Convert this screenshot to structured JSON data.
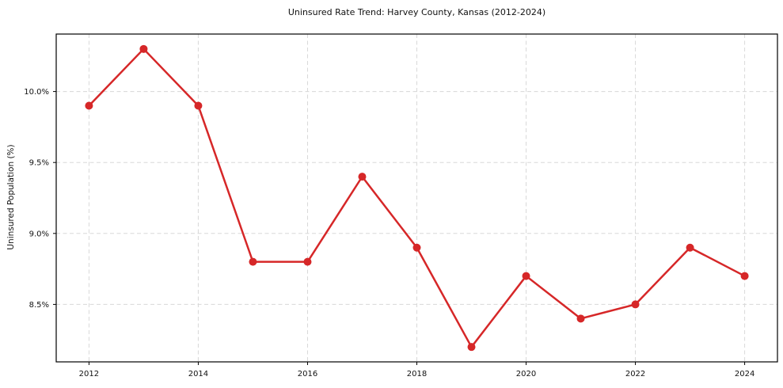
{
  "chart_data": {
    "type": "line",
    "title": "Uninsured Rate Trend: Harvey County, Kansas (2012-2024)",
    "xlabel": "",
    "ylabel": "Uninsured Population (%)",
    "x": [
      2012,
      2013,
      2014,
      2015,
      2016,
      2017,
      2018,
      2019,
      2020,
      2021,
      2022,
      2023,
      2024
    ],
    "series": [
      {
        "name": "Uninsured Rate",
        "values": [
          9.9,
          10.3,
          9.9,
          8.8,
          8.8,
          9.4,
          8.9,
          8.2,
          8.7,
          8.4,
          8.5,
          8.9,
          8.7
        ]
      }
    ],
    "xlim": [
      2011.4,
      2024.6
    ],
    "ylim": [
      8.095,
      10.405
    ],
    "xticks": {
      "values": [
        2012,
        2014,
        2016,
        2018,
        2020,
        2022,
        2024
      ],
      "labels": [
        "2012",
        "2014",
        "2016",
        "2018",
        "2020",
        "2022",
        "2024"
      ]
    },
    "yticks": {
      "values": [
        8.5,
        9.0,
        9.5,
        10.0
      ],
      "labels": [
        "8.5%",
        "9.0%",
        "9.5%",
        "10.0%"
      ]
    },
    "grid": true,
    "grid_style": "dashed",
    "legend": "none",
    "line_color": "#d62728",
    "marker": "circle",
    "grid_color": "#d8d8d8",
    "spine_color": "#000000",
    "tick_label_color": "#111111",
    "background": "#ffffff"
  }
}
